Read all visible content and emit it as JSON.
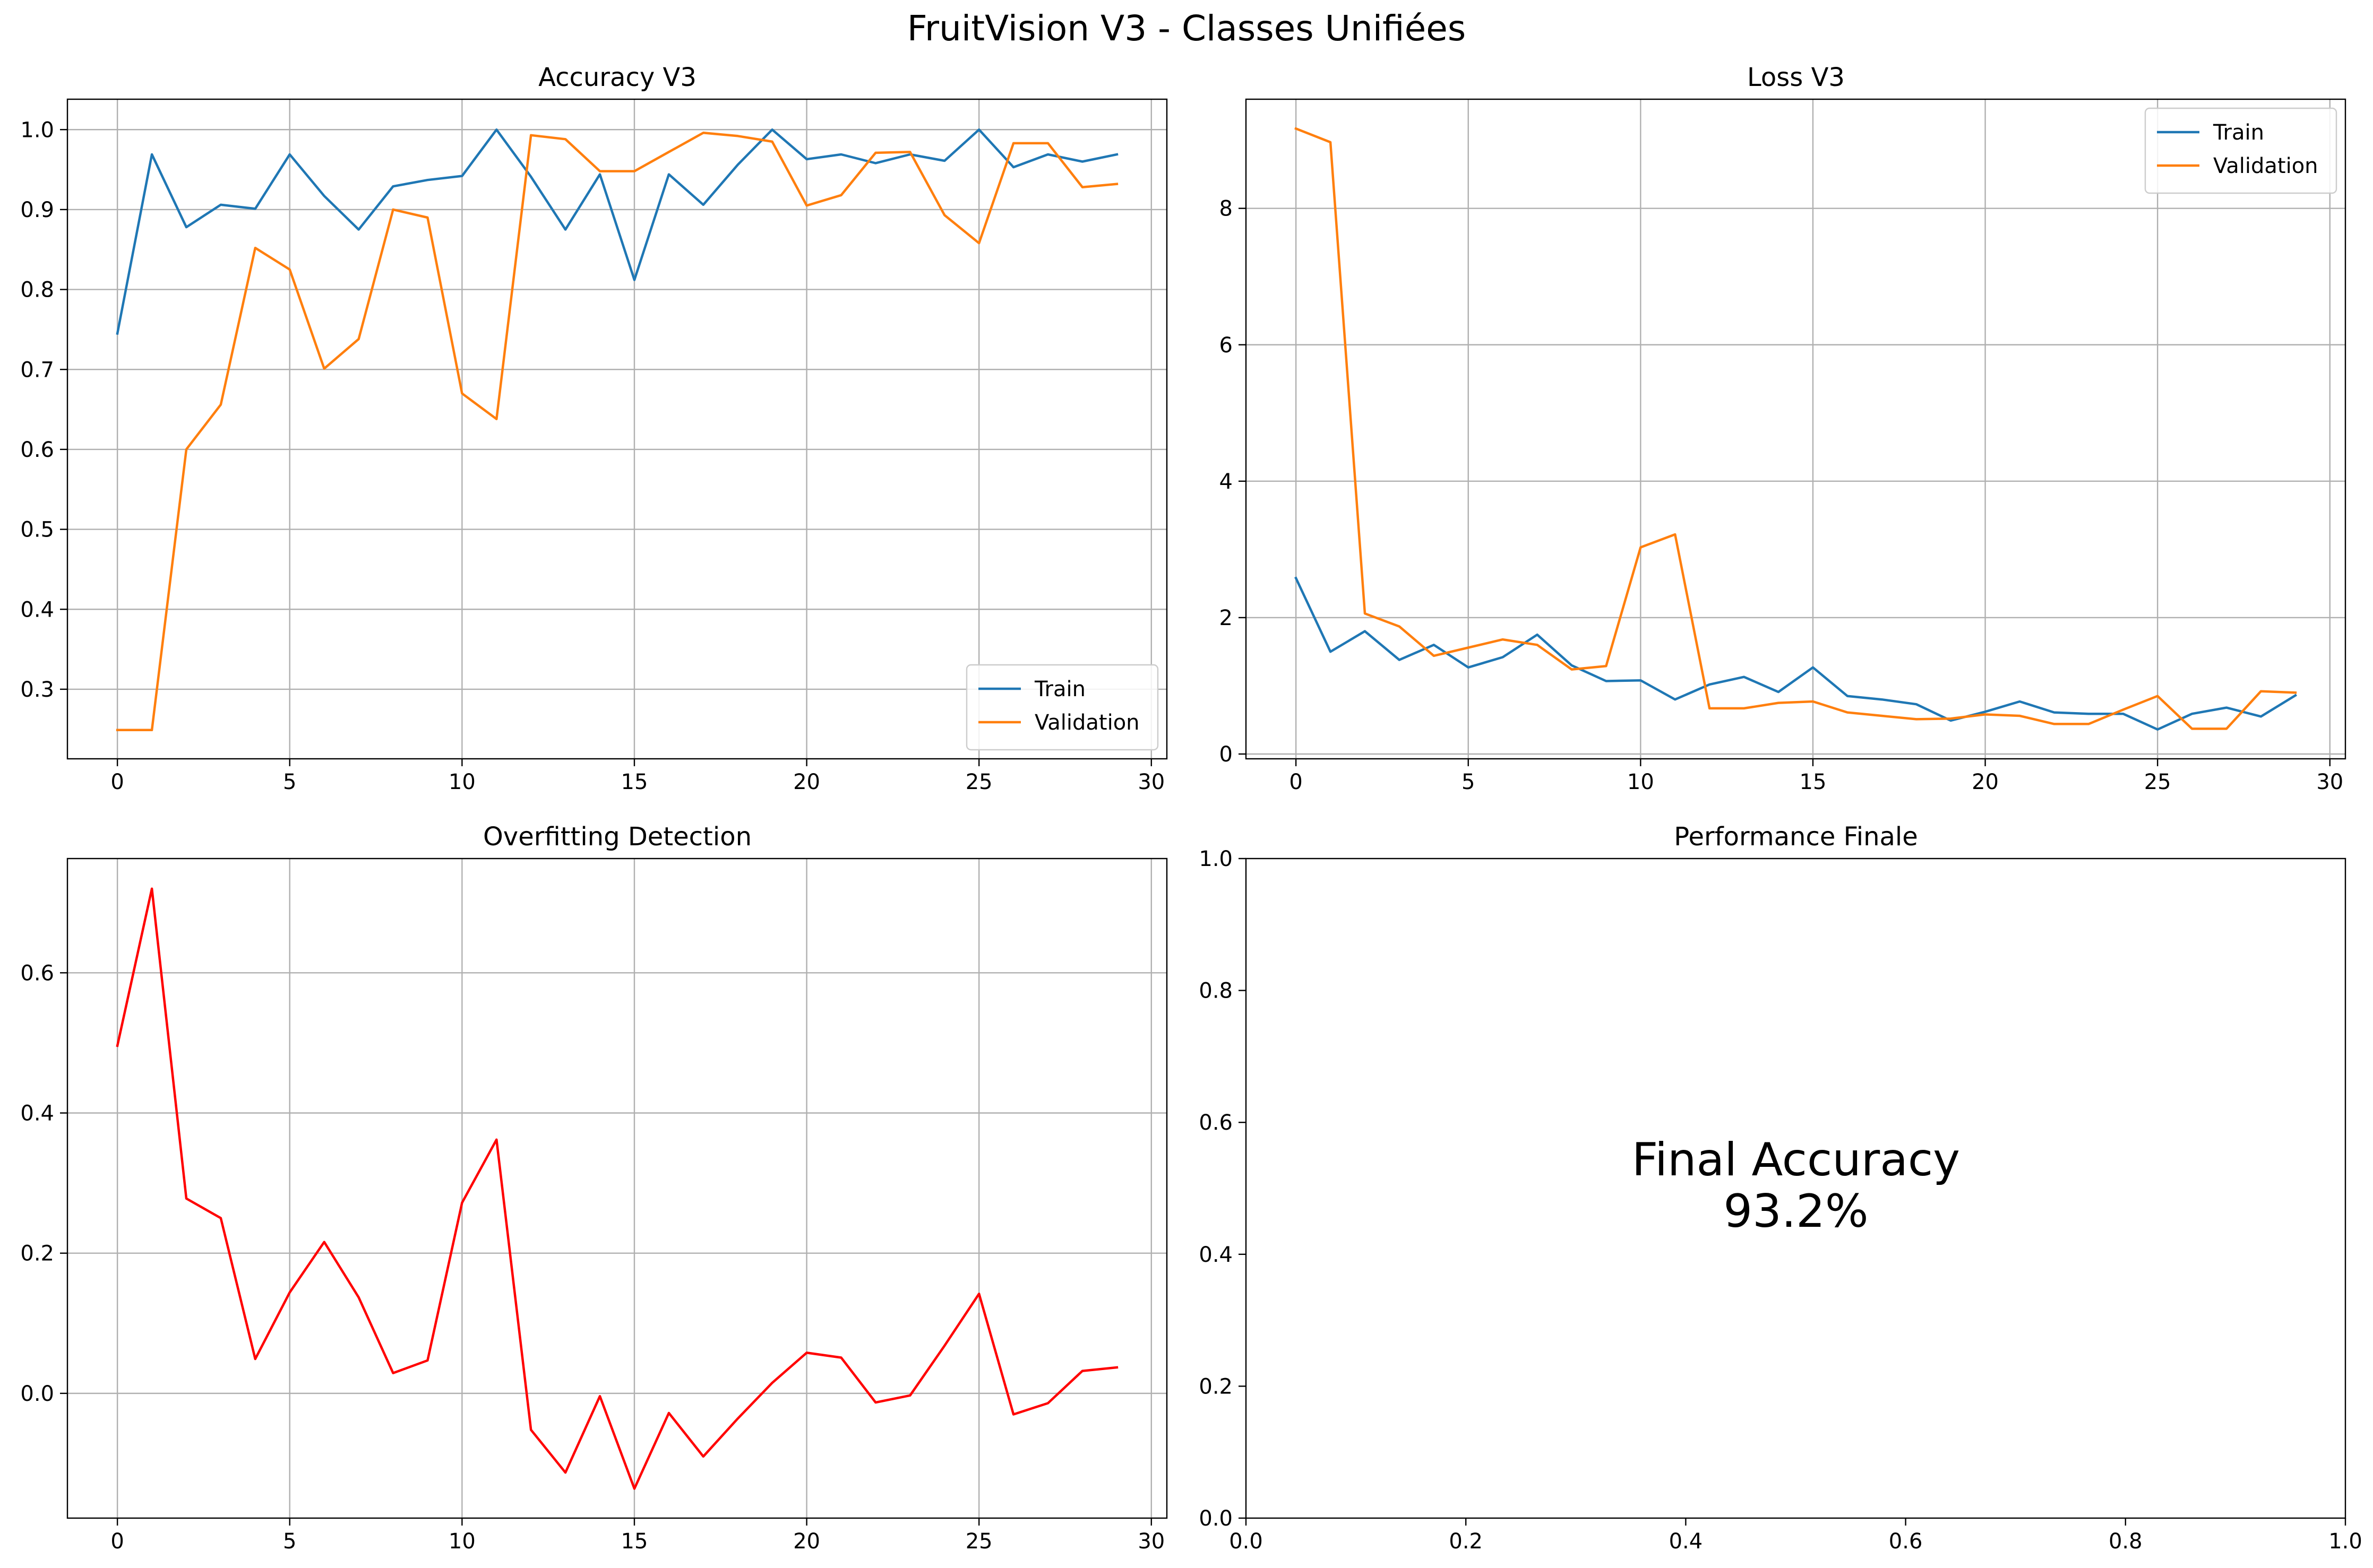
{
  "chart_data": {
    "title": "FruitVision V3 - Classes Unifiées",
    "panels": [
      {
        "type": "line",
        "title": "Accuracy V3",
        "xlabel": "",
        "ylabel": "",
        "xlim": [
          -1.45,
          30.45
        ],
        "ylim": [
          0.213,
          1.038
        ],
        "xticks": [
          0,
          5,
          10,
          15,
          20,
          25,
          30
        ],
        "yticks": [
          0.3,
          0.4,
          0.5,
          0.6,
          0.7,
          0.8,
          0.9,
          1.0
        ],
        "ytick_labels": [
          "0.3",
          "0.4",
          "0.5",
          "0.6",
          "0.7",
          "0.8",
          "0.9",
          "1.0"
        ],
        "grid": true,
        "legend_position": "lower-right",
        "x": [
          0,
          1,
          2,
          3,
          4,
          5,
          6,
          7,
          8,
          9,
          10,
          11,
          12,
          13,
          14,
          15,
          16,
          17,
          18,
          19,
          20,
          21,
          22,
          23,
          24,
          25,
          26,
          27,
          28,
          29
        ],
        "series": [
          {
            "name": "Train",
            "color": "#1f77b4",
            "values": [
              0.745,
              0.969,
              0.878,
              0.906,
              0.901,
              0.969,
              0.917,
              0.875,
              0.929,
              0.937,
              0.942,
              1.0,
              0.941,
              0.875,
              0.944,
              0.812,
              0.944,
              0.906,
              0.956,
              1.0,
              0.963,
              0.969,
              0.958,
              0.969,
              0.961,
              1.0,
              0.953,
              0.969,
              0.96,
              0.969
            ]
          },
          {
            "name": "Validation",
            "color": "#ff7f0e",
            "values": [
              0.249,
              0.249,
              0.6,
              0.656,
              0.852,
              0.825,
              0.701,
              0.738,
              0.9,
              0.89,
              0.67,
              0.638,
              0.993,
              0.988,
              0.948,
              0.948,
              0.972,
              0.996,
              0.992,
              0.985,
              0.905,
              0.918,
              0.971,
              0.972,
              0.893,
              0.858,
              0.983,
              0.983,
              0.928,
              0.932
            ]
          }
        ]
      },
      {
        "type": "line",
        "title": "Loss V3",
        "xlabel": "",
        "ylabel": "",
        "xlim": [
          -1.45,
          30.45
        ],
        "ylim": [
          -0.07,
          9.6
        ],
        "xticks": [
          0,
          5,
          10,
          15,
          20,
          25,
          30
        ],
        "yticks": [
          0,
          2,
          4,
          6,
          8
        ],
        "ytick_labels": [
          "0",
          "2",
          "4",
          "6",
          "8"
        ],
        "grid": true,
        "legend_position": "top-right",
        "x": [
          0,
          1,
          2,
          3,
          4,
          5,
          6,
          7,
          8,
          9,
          10,
          11,
          12,
          13,
          14,
          15,
          16,
          17,
          18,
          19,
          20,
          21,
          22,
          23,
          24,
          25,
          26,
          27,
          28,
          29
        ],
        "series": [
          {
            "name": "Train",
            "color": "#1f77b4",
            "values": [
              2.58,
              1.5,
              1.8,
              1.38,
              1.6,
              1.27,
              1.42,
              1.75,
              1.3,
              1.07,
              1.08,
              0.8,
              1.02,
              1.13,
              0.91,
              1.27,
              0.85,
              0.8,
              0.73,
              0.49,
              0.62,
              0.77,
              0.61,
              0.59,
              0.59,
              0.36,
              0.59,
              0.68,
              0.55,
              0.86
            ]
          },
          {
            "name": "Validation",
            "color": "#ff7f0e",
            "values": [
              9.17,
              8.97,
              2.06,
              1.87,
              1.44,
              1.56,
              1.68,
              1.6,
              1.24,
              1.29,
              3.03,
              3.22,
              0.67,
              0.67,
              0.75,
              0.77,
              0.61,
              0.56,
              0.51,
              0.52,
              0.58,
              0.56,
              0.44,
              0.44,
              0.65,
              0.85,
              0.37,
              0.37,
              0.92,
              0.9
            ]
          }
        ]
      },
      {
        "type": "line",
        "title": "Overfitting Detection",
        "xlabel": "",
        "ylabel": "",
        "xlim": [
          -1.45,
          30.45
        ],
        "ylim": [
          -0.178,
          0.763
        ],
        "xticks": [
          0,
          5,
          10,
          15,
          20,
          25,
          30
        ],
        "yticks": [
          0.0,
          0.2,
          0.4,
          0.6
        ],
        "ytick_labels": [
          "0.0",
          "0.2",
          "0.4",
          "0.6"
        ],
        "grid": true,
        "legend_position": "none",
        "x": [
          0,
          1,
          2,
          3,
          4,
          5,
          6,
          7,
          8,
          9,
          10,
          11,
          12,
          13,
          14,
          15,
          16,
          17,
          18,
          19,
          20,
          21,
          22,
          23,
          24,
          25,
          26,
          27,
          28,
          29
        ],
        "series": [
          {
            "color": "#ff0000",
            "values": [
              0.496,
              0.72,
              0.278,
              0.25,
              0.049,
              0.144,
              0.216,
              0.137,
              0.029,
              0.047,
              0.272,
              0.362,
              -0.052,
              -0.113,
              -0.004,
              -0.136,
              -0.028,
              -0.09,
              -0.036,
              0.015,
              0.058,
              0.051,
              -0.013,
              -0.003,
              0.068,
              0.142,
              -0.03,
              -0.014,
              0.032,
              0.037
            ]
          }
        ]
      },
      {
        "type": "text",
        "title": "Performance Finale",
        "xlim": [
          0,
          1
        ],
        "ylim": [
          0,
          1
        ],
        "xticks": [
          0,
          0.2,
          0.4,
          0.6,
          0.8,
          1.0
        ],
        "xtick_labels": [
          "0.0",
          "0.2",
          "0.4",
          "0.6",
          "0.8",
          "1.0"
        ],
        "yticks": [
          0,
          0.2,
          0.4,
          0.6,
          0.8,
          1.0
        ],
        "ytick_labels": [
          "0.0",
          "0.2",
          "0.4",
          "0.6",
          "0.8",
          "1.0"
        ],
        "grid": false,
        "text_lines": [
          "Final Accuracy",
          "93.2%"
        ]
      }
    ]
  }
}
